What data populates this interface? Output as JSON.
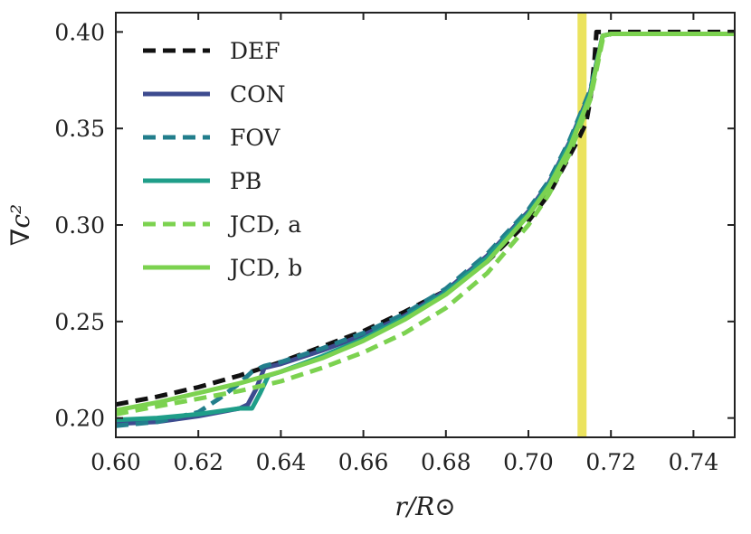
{
  "chart_data": {
    "type": "line",
    "title": "",
    "xlabel": "r/R⊙",
    "ylabel": "∇c²",
    "xlim": [
      0.6,
      0.75
    ],
    "ylim": [
      0.19,
      0.41
    ],
    "xticks": [
      0.6,
      0.62,
      0.64,
      0.66,
      0.68,
      0.7,
      0.72,
      0.74
    ],
    "xtick_labels": [
      "0.60",
      "0.62",
      "0.64",
      "0.66",
      "0.68",
      "0.70",
      "0.72",
      "0.74"
    ],
    "yticks": [
      0.2,
      0.25,
      0.3,
      0.35,
      0.4
    ],
    "ytick_labels": [
      "0.20",
      "0.25",
      "0.30",
      "0.35",
      "0.40"
    ],
    "legend_position": "top-left",
    "vertical_band": {
      "x": 0.713,
      "color": "#ebe35e"
    },
    "series": [
      {
        "name": "DEF",
        "color": "#111111",
        "dash": "dashed",
        "x": [
          0.6,
          0.61,
          0.62,
          0.63,
          0.64,
          0.65,
          0.66,
          0.67,
          0.68,
          0.69,
          0.7,
          0.705,
          0.71,
          0.712,
          0.714,
          0.715,
          0.716,
          0.7165,
          0.72,
          0.75
        ],
        "y": [
          0.207,
          0.211,
          0.216,
          0.222,
          0.229,
          0.237,
          0.245,
          0.255,
          0.266,
          0.281,
          0.302,
          0.316,
          0.336,
          0.344,
          0.353,
          0.365,
          0.385,
          0.4,
          0.4,
          0.4
        ]
      },
      {
        "name": "CON",
        "color": "#3d4b8f",
        "dash": "solid",
        "x": [
          0.6,
          0.61,
          0.62,
          0.63,
          0.632,
          0.634,
          0.636,
          0.64,
          0.65,
          0.66,
          0.67,
          0.68,
          0.69,
          0.7,
          0.705,
          0.71,
          0.715,
          0.718,
          0.72,
          0.75
        ],
        "y": [
          0.197,
          0.198,
          0.201,
          0.205,
          0.207,
          0.215,
          0.226,
          0.228,
          0.235,
          0.243,
          0.253,
          0.266,
          0.284,
          0.307,
          0.322,
          0.343,
          0.369,
          0.398,
          0.399,
          0.399
        ]
      },
      {
        "name": "FOV",
        "color": "#227e8c",
        "dash": "dashed",
        "x": [
          0.6,
          0.61,
          0.62,
          0.625,
          0.63,
          0.633,
          0.636,
          0.64,
          0.65,
          0.66,
          0.67,
          0.68,
          0.69,
          0.7,
          0.705,
          0.71,
          0.715,
          0.718,
          0.72,
          0.75
        ],
        "y": [
          0.196,
          0.198,
          0.203,
          0.21,
          0.218,
          0.224,
          0.227,
          0.229,
          0.236,
          0.244,
          0.254,
          0.267,
          0.285,
          0.308,
          0.323,
          0.344,
          0.37,
          0.398,
          0.399,
          0.399
        ]
      },
      {
        "name": "PB",
        "color": "#1f9e89",
        "dash": "solid",
        "x": [
          0.6,
          0.61,
          0.62,
          0.63,
          0.633,
          0.635,
          0.637,
          0.64,
          0.65,
          0.66,
          0.67,
          0.68,
          0.69,
          0.7,
          0.705,
          0.71,
          0.715,
          0.718,
          0.72,
          0.75
        ],
        "y": [
          0.199,
          0.2,
          0.202,
          0.205,
          0.205,
          0.213,
          0.222,
          0.224,
          0.232,
          0.241,
          0.252,
          0.265,
          0.283,
          0.306,
          0.321,
          0.342,
          0.368,
          0.398,
          0.399,
          0.399
        ]
      },
      {
        "name": "JCD, a",
        "color": "#7cd250",
        "dash": "dashed",
        "x": [
          0.6,
          0.61,
          0.62,
          0.63,
          0.64,
          0.65,
          0.66,
          0.67,
          0.68,
          0.69,
          0.7,
          0.705,
          0.71,
          0.715,
          0.718,
          0.72,
          0.75
        ],
        "y": [
          0.202,
          0.206,
          0.21,
          0.214,
          0.219,
          0.226,
          0.234,
          0.244,
          0.257,
          0.275,
          0.3,
          0.316,
          0.337,
          0.365,
          0.396,
          0.399,
          0.399
        ]
      },
      {
        "name": "JCD, b",
        "color": "#7cd250",
        "dash": "solid",
        "x": [
          0.6,
          0.61,
          0.62,
          0.63,
          0.64,
          0.65,
          0.66,
          0.67,
          0.68,
          0.69,
          0.7,
          0.705,
          0.71,
          0.715,
          0.718,
          0.72,
          0.75
        ],
        "y": [
          0.204,
          0.208,
          0.213,
          0.218,
          0.224,
          0.231,
          0.24,
          0.251,
          0.264,
          0.281,
          0.305,
          0.32,
          0.34,
          0.367,
          0.398,
          0.399,
          0.399
        ]
      }
    ]
  }
}
